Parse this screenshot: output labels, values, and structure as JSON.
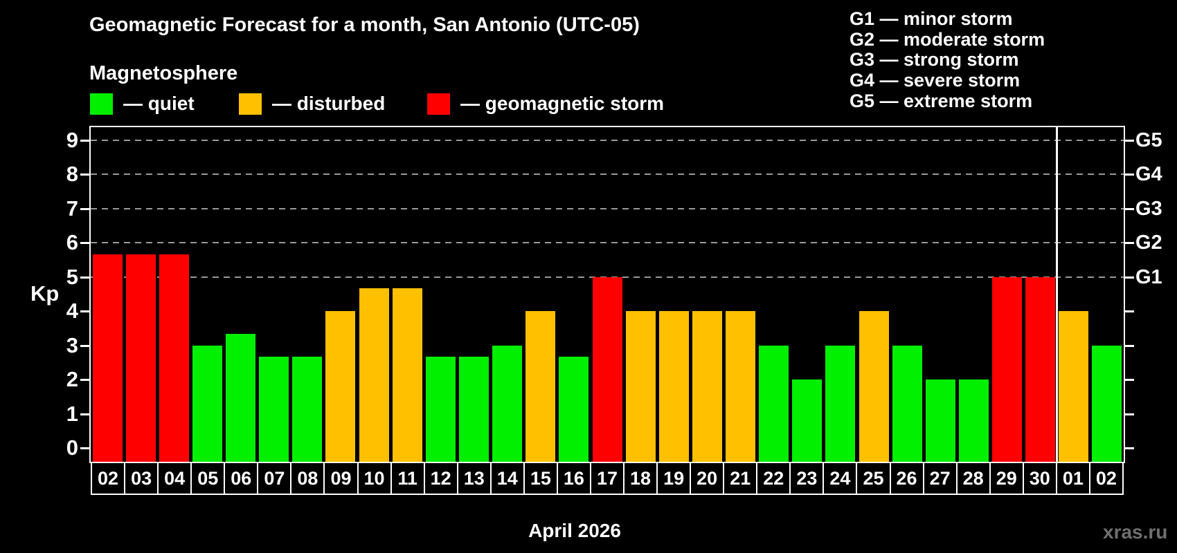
{
  "watermark": "xras.ru",
  "chart_data": {
    "type": "bar",
    "title": "Geomagnetic Forecast for a month, San Antonio (UTC-05)",
    "subtitle": "Magnetosphere",
    "xlabel": "April 2026",
    "ylabel": "Kp",
    "ylim": [
      0,
      9
    ],
    "y_ticks": [
      "0",
      "1",
      "2",
      "3",
      "4",
      "5",
      "6",
      "7",
      "8",
      "9"
    ],
    "gridlines_at_kp": [
      5,
      6,
      7,
      8,
      9
    ],
    "grid_style": "dashed horizontal lines at storm levels only",
    "legend": [
      {
        "status": "quiet",
        "label": "— quiet",
        "color": "#00f000"
      },
      {
        "status": "disturbed",
        "label": "— disturbed",
        "color": "#ffc000"
      },
      {
        "status": "storm",
        "label": "— geomagnetic storm",
        "color": "#ff0000"
      }
    ],
    "g_legend": [
      "G1 — minor storm",
      "G2 — moderate storm",
      "G3 — strong storm",
      "G4 — severe storm",
      "G5 — extreme storm"
    ],
    "right_axis_labels": [
      {
        "kp": 5,
        "label": "G1"
      },
      {
        "kp": 6,
        "label": "G2"
      },
      {
        "kp": 7,
        "label": "G3"
      },
      {
        "kp": 8,
        "label": "G4"
      },
      {
        "kp": 9,
        "label": "G5"
      }
    ],
    "categories": [
      "02",
      "03",
      "04",
      "05",
      "06",
      "07",
      "08",
      "09",
      "10",
      "11",
      "12",
      "13",
      "14",
      "15",
      "16",
      "17",
      "18",
      "19",
      "20",
      "21",
      "22",
      "23",
      "24",
      "25",
      "26",
      "27",
      "28",
      "29",
      "30",
      "01",
      "02"
    ],
    "values": [
      5.67,
      5.67,
      5.67,
      3,
      3.33,
      2.67,
      2.67,
      4,
      4.67,
      4.67,
      2.67,
      2.67,
      3,
      4,
      2.67,
      5,
      4,
      4,
      4,
      4,
      3,
      2,
      3,
      4,
      3,
      2,
      2,
      5,
      5,
      4,
      3
    ],
    "statuses": [
      "storm",
      "storm",
      "storm",
      "quiet",
      "quiet",
      "quiet",
      "quiet",
      "disturbed",
      "disturbed",
      "disturbed",
      "quiet",
      "quiet",
      "quiet",
      "disturbed",
      "quiet",
      "storm",
      "disturbed",
      "disturbed",
      "disturbed",
      "disturbed",
      "quiet",
      "quiet",
      "quiet",
      "disturbed",
      "quiet",
      "quiet",
      "quiet",
      "storm",
      "storm",
      "disturbed",
      "quiet"
    ],
    "month_separator_after_index": 28,
    "colors": {
      "background": "#000000",
      "axis": "#ffffff",
      "grid": "#9a9a9a",
      "watermark": "#6f6f6f"
    }
  }
}
